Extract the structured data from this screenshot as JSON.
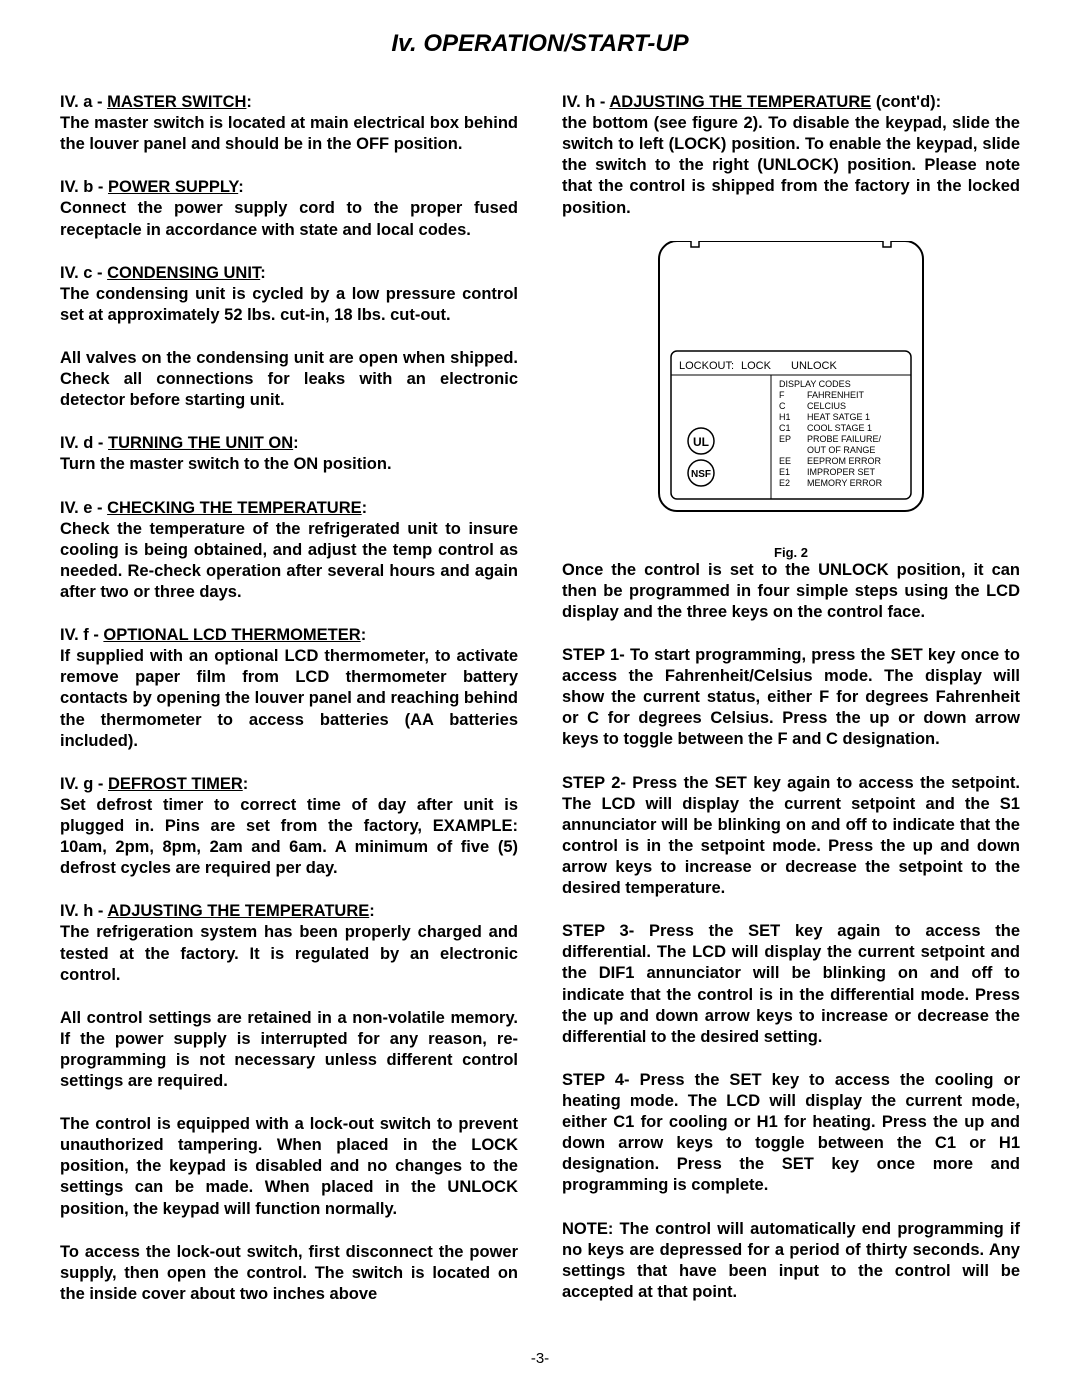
{
  "page_title": "Iv. OPERATION/START-UP",
  "page_number": "-3-",
  "left_column": {
    "sections": [
      {
        "id": "IV. a",
        "title": "MASTER SWITCH",
        "body": "The master switch is located at main electrical box behind the louver panel and should be in the OFF position."
      },
      {
        "id": "IV. b",
        "title": "POWER SUPPLY",
        "body": "Connect the power supply cord to the proper fused receptacle in accordance with state and local codes."
      },
      {
        "id": "IV. c",
        "title": "CONDENSING UNIT",
        "body": "The condensing unit is cycled by a low pressure control set at approximately 52 lbs. cut-in, 18 lbs. cut-out."
      },
      {
        "id": "",
        "title": "",
        "body": "All valves on the condensing unit are open when shipped.  Check all connections for leaks with an electronic detector before starting unit."
      },
      {
        "id": "IV. d",
        "title": "TURNING THE UNIT ON",
        "body": "Turn the master switch to the ON position."
      },
      {
        "id": "IV. e",
        "title": "CHECKING THE TEMPERATURE",
        "body": "Check the temperature of the refrigerated unit to insure cooling is being obtained, and adjust the temp control as needed.  Re-check operation after several hours and again after two or three days."
      },
      {
        "id": "IV. f",
        "title": "OPTIONAL LCD THERMOMETER",
        "body": "If supplied with an optional LCD thermometer, to activate remove paper film from LCD thermometer battery contacts by opening the louver panel and reaching behind the thermometer to access batteries (AA batteries included)."
      },
      {
        "id": "IV. g",
        "title": "DEFROST TIMER",
        "body": "Set defrost timer to correct time of day after unit is plugged in.  Pins are set from the factory, EXAMPLE: 10am, 2pm, 8pm, 2am and 6am.  A minimum of five (5) defrost cycles are required per day."
      },
      {
        "id": "IV. h",
        "title": "ADJUSTING THE TEMPERATURE",
        "body": "The refrigeration system has been properly charged and tested at the factory.  It is regulated by an electronic control."
      },
      {
        "id": "",
        "title": "",
        "body": "All control settings are retained in a non-volatile memory.  If the power supply is interrupted for any reason, re-programming is not necessary unless different control settings are required."
      },
      {
        "id": "",
        "title": "",
        "body": "The control is equipped with a lock-out switch to prevent unauthorized tampering.  When placed in the LOCK position, the keypad is disabled and no changes to the settings can be made.  When placed in the UNLOCK position, the keypad will function normally."
      },
      {
        "id": "",
        "title": "",
        "body": "To access the lock-out switch, first disconnect the power supply, then open the control.  The switch is located on the inside cover about two inches above"
      }
    ]
  },
  "right_column": {
    "header": {
      "id": "IV. h",
      "title": "ADJUSTING THE TEMPERATURE",
      "suffix": "  (cont'd)",
      "body": "the bottom (see figure 2).  To disable the keypad, slide the switch to left (LOCK) position.  To enable the keypad, slide the switch to the right (UNLOCK) position.  Please note that the control is shipped from the factory in the locked position."
    },
    "figure": {
      "caption": "Fig. 2",
      "lockout_label": "LOCKOUT:",
      "lock": "LOCK",
      "unlock": "UNLOCK",
      "codes_header": "DISPLAY CODES",
      "codes": [
        [
          "F",
          "FAHRENHEIT"
        ],
        [
          "C",
          "CELCIUS"
        ],
        [
          "H1",
          "HEAT SATGE 1"
        ],
        [
          "C1",
          "COOL STAGE 1"
        ],
        [
          "EP",
          "PROBE FAILURE/"
        ],
        [
          "",
          "OUT OF RANGE"
        ],
        [
          "EE",
          "EEPROM ERROR"
        ],
        [
          "E1",
          "IMPROPER SET"
        ],
        [
          "E2",
          "MEMORY ERROR"
        ]
      ],
      "ul_label": "UL",
      "nsf_label": "NSF"
    },
    "paras": [
      "Once the control is set to the UNLOCK position, it can then be programmed in four simple steps using the LCD display and the three keys on the control face.",
      "STEP 1- To start programming, press the SET key once to access the Fahrenheit/Celsius mode.  The display will show the current status, either F for degrees Fahrenheit or C for degrees Celsius.  Press the up or down arrow keys to toggle between the F and C designation.",
      "STEP 2- Press the SET key again to access the setpoint.  The LCD will display the current setpoint and the S1 annunciator will be blinking on and off to indicate that the control is in the setpoint mode.  Press the up and down arrow keys to increase or decrease the setpoint to the desired temperature.",
      "STEP 3- Press the SET key again to access the differential.  The LCD will display the current setpoint and the DIF1 annunciator will be blinking on and off to indicate that the control is in the differential mode.  Press the up and down arrow keys to increase or decrease the differential to the desired setting.",
      "STEP 4- Press the SET key to access the cooling or heating mode.  The LCD will display the current mode, either C1 for cooling or H1 for heating.   Press the up and down arrow keys to toggle between the C1 or H1 designation.  Press the SET key once more and programming is complete.",
      "NOTE: The control will automatically end programming if no keys are depressed for a period of thirty seconds.  Any settings that have been input to the control will be accepted at that point."
    ]
  }
}
